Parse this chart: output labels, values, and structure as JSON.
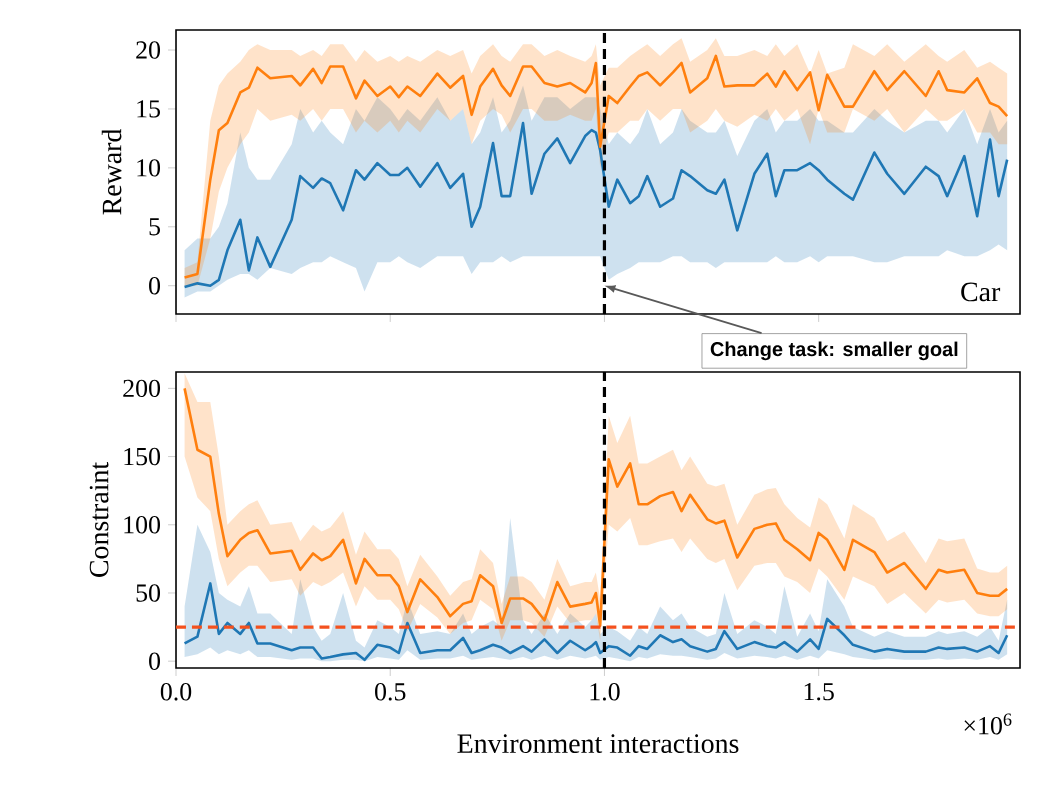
{
  "chart_data": [
    {
      "type": "line",
      "ylabel": "Reward",
      "xlim": [
        0,
        1.97
      ],
      "ylim": [
        -2.4,
        21.7
      ],
      "xticks": [
        {
          "value": 0,
          "label": null
        },
        {
          "value": 0.5,
          "label": null
        },
        {
          "value": 1.0,
          "label": null
        },
        {
          "value": 1.5,
          "label": null
        }
      ],
      "yticks": [
        0,
        5,
        10,
        15,
        20
      ],
      "tick_labels": "y",
      "x": [
        0.02,
        0.05,
        0.08,
        0.1,
        0.12,
        0.15,
        0.17,
        0.19,
        0.22,
        0.27,
        0.29,
        0.32,
        0.34,
        0.36,
        0.39,
        0.42,
        0.44,
        0.47,
        0.5,
        0.52,
        0.54,
        0.57,
        0.61,
        0.64,
        0.67,
        0.69,
        0.71,
        0.74,
        0.76,
        0.78,
        0.81,
        0.83,
        0.86,
        0.89,
        0.92,
        0.955,
        0.97,
        0.98,
        0.99,
        1.01,
        1.03,
        1.06,
        1.08,
        1.1,
        1.13,
        1.16,
        1.18,
        1.2,
        1.24,
        1.26,
        1.28,
        1.31,
        1.35,
        1.38,
        1.4,
        1.42,
        1.45,
        1.48,
        1.5,
        1.52,
        1.56,
        1.58,
        1.63,
        1.66,
        1.7,
        1.75,
        1.78,
        1.8,
        1.84,
        1.87,
        1.9,
        1.92,
        1.94
      ],
      "series": [
        {
          "color": "#1f77b4",
          "values": [
            -0.1,
            0.2,
            0,
            0.5,
            3,
            5.6,
            1.3,
            4.1,
            1.6,
            5.6,
            9.3,
            8.3,
            9.1,
            8.7,
            6.4,
            9.8,
            9,
            10.4,
            9.4,
            9.4,
            10,
            8.4,
            10.4,
            8.3,
            9.5,
            5,
            6.7,
            12.1,
            7.6,
            7.6,
            13.8,
            7.8,
            11.2,
            12.5,
            10.4,
            12.7,
            13.2,
            13,
            11.5,
            6.7,
            9,
            7,
            7.6,
            9.3,
            6.7,
            7.4,
            9.8,
            9.3,
            8.1,
            7.8,
            9,
            4.7,
            9.5,
            11.2,
            7.6,
            9.8,
            9.8,
            10.4,
            9.8,
            9,
            7.8,
            7.3,
            11.3,
            9.5,
            7.8,
            10.1,
            9.3,
            7.6,
            11,
            5.9,
            12.4,
            7.6,
            10.7
          ],
          "lower": [
            -1,
            -0.5,
            -0.5,
            0,
            0.5,
            1,
            1,
            0.5,
            1.5,
            1,
            1.5,
            2,
            2,
            2.5,
            2,
            1.5,
            -0.5,
            2,
            2,
            2.5,
            2,
            1.5,
            2.5,
            2.5,
            2.5,
            1,
            2,
            2,
            2.5,
            2,
            2.5,
            2.5,
            2.5,
            2.5,
            2.5,
            2.5,
            2.5,
            2.5,
            2.5,
            0.5,
            1,
            1.5,
            2,
            2,
            2,
            2.5,
            2.5,
            2,
            2,
            1.5,
            2,
            2,
            2,
            2,
            2.5,
            2,
            2,
            2.5,
            2,
            2.5,
            2.5,
            2.5,
            2,
            2,
            2.5,
            2.5,
            2.5,
            3,
            2.5,
            2.5,
            3,
            3.5,
            3
          ],
          "upper": [
            3,
            4,
            4,
            5,
            7,
            13,
            10,
            9,
            9,
            12,
            15,
            13,
            14,
            13,
            12,
            15,
            14,
            16,
            15,
            14,
            15,
            14,
            16,
            14,
            15,
            12,
            13,
            16,
            13,
            14,
            17,
            14,
            16,
            16,
            15,
            16,
            16,
            16,
            15,
            12,
            13,
            12,
            13,
            15,
            12,
            13,
            15,
            14,
            13,
            13,
            14,
            11,
            14,
            15,
            13,
            14,
            14,
            15,
            14,
            14,
            13,
            13,
            15,
            14,
            13,
            14,
            14,
            13,
            15,
            12,
            15,
            13,
            14
          ]
        },
        {
          "color": "#ff7f0e",
          "values": [
            0.7,
            1,
            9,
            13.2,
            13.8,
            16.4,
            16.8,
            18.5,
            17.6,
            17.8,
            17,
            18.4,
            17.2,
            18.6,
            18.6,
            15.9,
            17.4,
            16.1,
            16.9,
            16,
            16.9,
            16.1,
            18,
            16.8,
            17.8,
            14.5,
            16.9,
            18.4,
            17,
            16.1,
            18.6,
            18.6,
            17.2,
            16.9,
            17.2,
            16.4,
            17.2,
            18.9,
            11.8,
            16.1,
            15.5,
            16.9,
            17.8,
            18.1,
            17,
            18.1,
            18.9,
            16.4,
            17.6,
            19.5,
            16.9,
            17,
            17,
            18,
            16.9,
            18.2,
            16.6,
            18.1,
            14.9,
            17.9,
            15.2,
            15.2,
            18.2,
            16.6,
            18.2,
            16.1,
            18.2,
            16.6,
            16.4,
            17.6,
            15.5,
            15.2,
            14.4
          ],
          "lower": [
            0,
            0,
            4,
            8,
            10,
            12,
            13,
            15,
            14,
            14.5,
            14,
            15,
            14,
            15,
            15,
            13,
            14,
            13,
            14,
            13,
            14,
            13,
            15,
            14,
            15,
            12,
            14,
            15,
            14.5,
            13,
            15,
            15,
            14,
            14,
            14.5,
            14,
            14,
            15,
            10,
            13,
            13,
            14,
            14,
            15,
            14,
            15,
            15,
            13,
            14,
            15,
            14,
            13.5,
            14.5,
            14,
            15,
            14,
            15,
            12,
            15,
            13,
            13,
            15,
            14,
            15,
            13,
            15,
            14,
            14,
            15,
            13,
            13,
            12,
            12
          ],
          "upper": [
            1.5,
            2,
            14,
            17,
            18,
            19,
            20,
            20.5,
            20,
            20,
            19.5,
            20,
            19.5,
            20.5,
            20.5,
            19,
            20,
            19,
            19.5,
            19,
            19.5,
            19,
            20,
            19.5,
            20,
            18,
            19.5,
            20.5,
            19.5,
            19,
            20.5,
            20.5,
            19.5,
            20,
            19.5,
            19,
            19.5,
            20.5,
            17,
            18.5,
            18.5,
            19.5,
            20,
            20.5,
            19.5,
            20.5,
            21,
            19,
            20,
            21,
            19.5,
            19.5,
            20,
            19.5,
            20.5,
            19.5,
            20.5,
            18,
            20,
            18,
            18.5,
            20.5,
            19.5,
            20.5,
            19,
            20.5,
            19.5,
            19,
            20,
            18.5,
            19,
            18.5,
            18
          ]
        }
      ],
      "ref_lines": [
        {
          "axis": "x",
          "value": 1.0,
          "color": "#000000",
          "line_style": "dashed"
        }
      ],
      "annotations": [
        "Car",
        {
          "text": "Change task: smaller goal",
          "x": 1.0,
          "y": 0
        }
      ]
    },
    {
      "type": "line",
      "ylabel": "Constraint",
      "xlabel": "Environment interactions",
      "xlim": [
        0,
        1.97
      ],
      "ylim": [
        -5,
        212
      ],
      "xticks": [
        {
          "value": 0,
          "label": "0.0"
        },
        {
          "value": 0.5,
          "label": "0.5"
        },
        {
          "value": 1.0,
          "label": "1.0"
        },
        {
          "value": 1.5,
          "label": "1.5"
        }
      ],
      "yticks": [
        0,
        50,
        100,
        150,
        200
      ],
      "x": [
        0.02,
        0.05,
        0.08,
        0.1,
        0.12,
        0.15,
        0.17,
        0.19,
        0.22,
        0.27,
        0.29,
        0.32,
        0.34,
        0.36,
        0.39,
        0.42,
        0.44,
        0.47,
        0.5,
        0.52,
        0.54,
        0.57,
        0.61,
        0.64,
        0.67,
        0.69,
        0.71,
        0.74,
        0.76,
        0.78,
        0.81,
        0.83,
        0.86,
        0.89,
        0.92,
        0.955,
        0.97,
        0.98,
        0.99,
        1.01,
        1.03,
        1.06,
        1.08,
        1.1,
        1.13,
        1.16,
        1.18,
        1.2,
        1.24,
        1.26,
        1.28,
        1.31,
        1.35,
        1.38,
        1.4,
        1.42,
        1.45,
        1.48,
        1.5,
        1.52,
        1.56,
        1.58,
        1.63,
        1.66,
        1.7,
        1.75,
        1.78,
        1.8,
        1.84,
        1.87,
        1.9,
        1.92,
        1.94
      ],
      "series": [
        {
          "color": "#1f77b4",
          "values": [
            13,
            18,
            57,
            20,
            28,
            20,
            28,
            13,
            13,
            8,
            10,
            10,
            2,
            3,
            5,
            6,
            1,
            12,
            10,
            6,
            28,
            6,
            8,
            8,
            17,
            6,
            8,
            12,
            10,
            6,
            11,
            7,
            16,
            6,
            15,
            8,
            11,
            14,
            6,
            11,
            10,
            4,
            11,
            9,
            19,
            14,
            16,
            11,
            7,
            9,
            22,
            9,
            14,
            11,
            10,
            14,
            7,
            16,
            9,
            31,
            19,
            12,
            7,
            9,
            7,
            7,
            10,
            9,
            10,
            7,
            11,
            6,
            19
          ],
          "lower": [
            3,
            5,
            10,
            5,
            8,
            5,
            8,
            3,
            3,
            1,
            2,
            2,
            0,
            0,
            1,
            1,
            0,
            3,
            2,
            1,
            8,
            1,
            2,
            2,
            4,
            1,
            2,
            3,
            2,
            1,
            3,
            1,
            4,
            1,
            4,
            2,
            3,
            4,
            1,
            3,
            2,
            0,
            3,
            2,
            5,
            4,
            4,
            3,
            1,
            2,
            6,
            2,
            4,
            3,
            2,
            4,
            1,
            4,
            2,
            8,
            5,
            3,
            1,
            2,
            1,
            1,
            2,
            1,
            2,
            1,
            3,
            1,
            5
          ],
          "upper": [
            40,
            100,
            80,
            50,
            45,
            40,
            55,
            35,
            35,
            20,
            60,
            25,
            15,
            20,
            50,
            15,
            10,
            30,
            25,
            20,
            45,
            20,
            22,
            20,
            35,
            20,
            25,
            30,
            25,
            105,
            30,
            20,
            35,
            20,
            35,
            25,
            30,
            35,
            20,
            25,
            22,
            15,
            25,
            20,
            40,
            30,
            35,
            25,
            18,
            20,
            50,
            20,
            30,
            25,
            20,
            55,
            18,
            35,
            22,
            60,
            40,
            25,
            18,
            22,
            18,
            18,
            22,
            20,
            22,
            18,
            25,
            15,
            45
          ]
        },
        {
          "color": "#ff7f0e",
          "values": [
            200,
            155,
            150,
            108,
            77,
            89,
            94,
            96,
            79,
            81,
            67,
            79,
            74,
            77,
            89,
            57,
            75,
            63,
            63,
            55,
            36,
            60,
            47,
            33,
            42,
            44,
            63,
            55,
            28,
            46,
            46,
            42,
            30,
            58,
            40,
            42,
            43,
            50,
            26,
            148,
            128,
            145,
            115,
            115,
            121,
            124,
            110,
            122,
            104,
            101,
            103,
            76,
            97,
            100,
            101,
            89,
            82,
            74,
            94,
            89,
            67,
            89,
            80,
            65,
            72,
            53,
            67,
            65,
            67,
            50,
            48,
            48,
            53
          ],
          "lower": [
            150,
            120,
            110,
            75,
            55,
            65,
            70,
            70,
            58,
            60,
            48,
            58,
            55,
            58,
            65,
            40,
            55,
            45,
            45,
            38,
            22,
            42,
            32,
            20,
            28,
            30,
            45,
            38,
            15,
            30,
            30,
            28,
            18,
            40,
            28,
            30,
            30,
            35,
            15,
            100,
            95,
            105,
            85,
            85,
            88,
            90,
            80,
            90,
            75,
            72,
            75,
            52,
            70,
            72,
            72,
            62,
            58,
            50,
            68,
            62,
            45,
            62,
            55,
            42,
            50,
            35,
            45,
            43,
            45,
            35,
            33,
            33,
            38
          ],
          "upper": [
            211,
            190,
            190,
            150,
            100,
            110,
            115,
            118,
            100,
            102,
            88,
            100,
            95,
            98,
            110,
            78,
            95,
            82,
            82,
            75,
            55,
            78,
            62,
            48,
            58,
            60,
            82,
            72,
            42,
            62,
            62,
            58,
            45,
            75,
            55,
            58,
            58,
            65,
            45,
            180,
            160,
            180,
            145,
            145,
            150,
            155,
            140,
            150,
            130,
            128,
            130,
            100,
            122,
            126,
            127,
            115,
            105,
            98,
            120,
            115,
            90,
            115,
            105,
            88,
            95,
            72,
            90,
            88,
            90,
            68,
            65,
            65,
            70
          ]
        }
      ],
      "ref_lines": [
        {
          "axis": "x",
          "value": 1.0,
          "color": "#000000",
          "line_style": "dashed"
        },
        {
          "axis": "y",
          "value": 25,
          "color": "#f4511e",
          "line_style": "dashed"
        }
      ],
      "annotations": [
        "×10$^{6}$"
      ]
    }
  ]
}
